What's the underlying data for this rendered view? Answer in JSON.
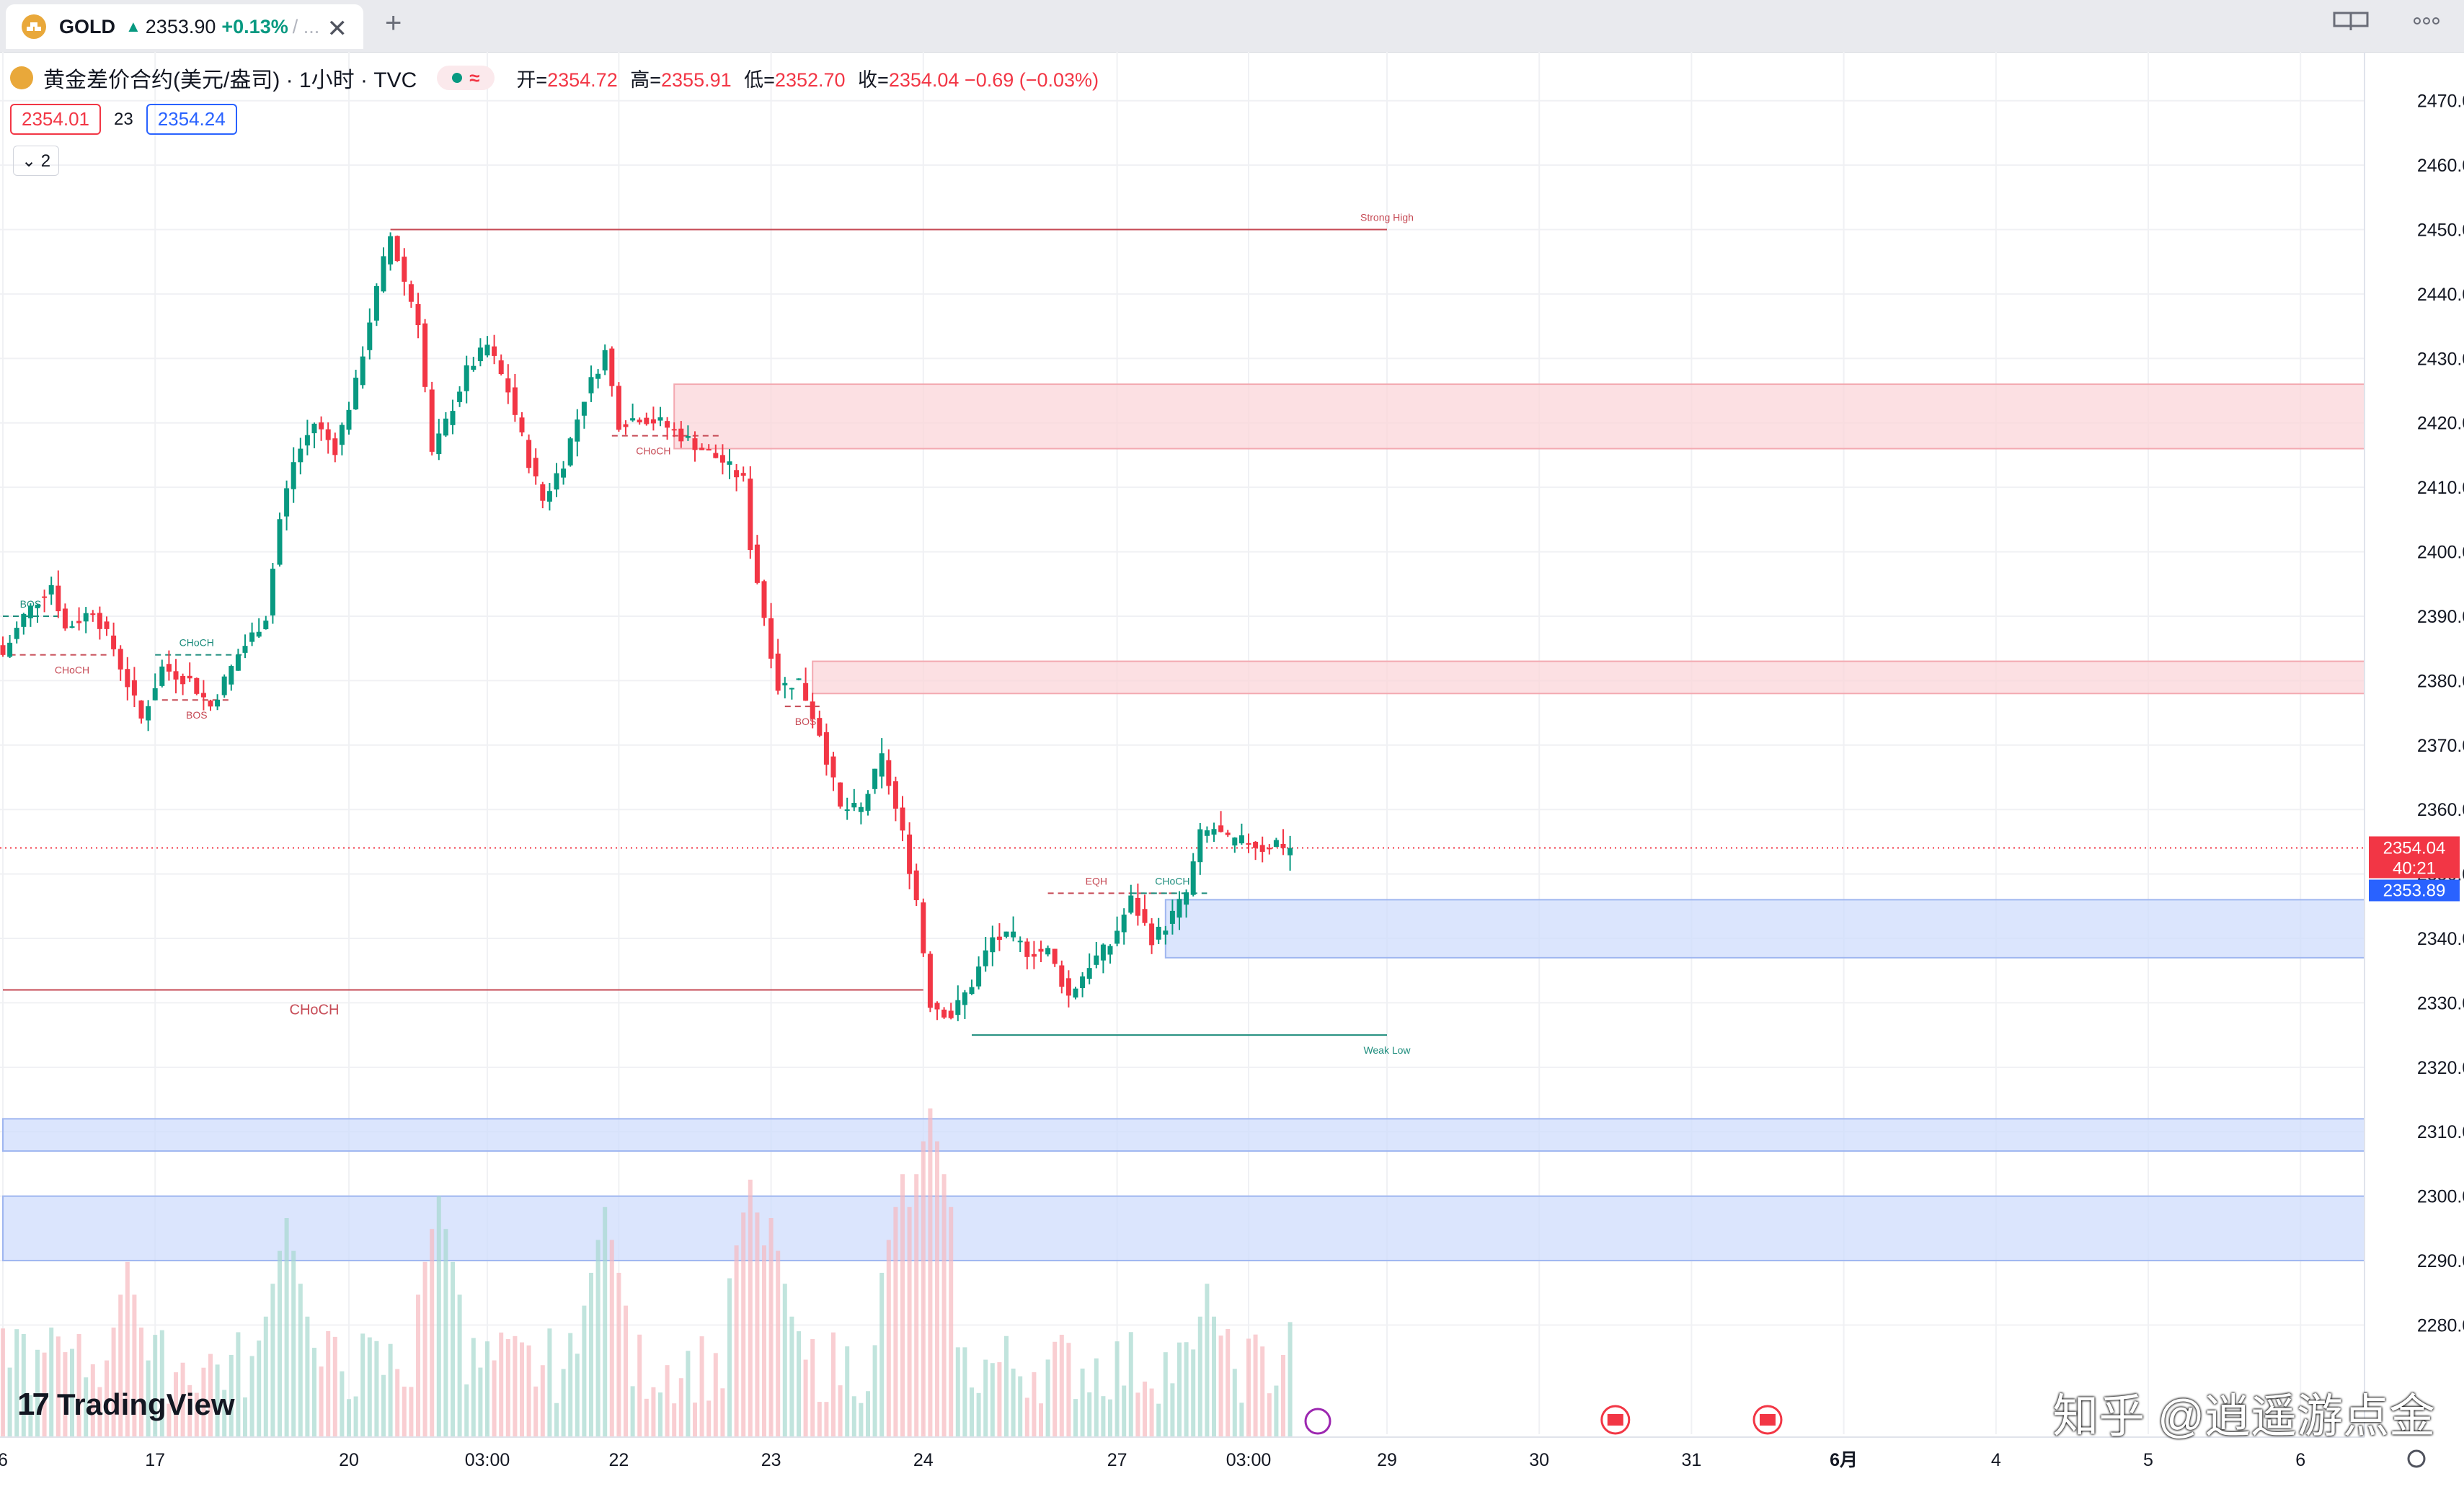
{
  "tab": {
    "symbol": "GOLD",
    "arrow": "▲",
    "price": "2353.90",
    "change": "+0.13%",
    "slash": "/ ..."
  },
  "legend": {
    "title": "黄金差价合约(美元/盎司) · 1小时 · TVC",
    "open_k": "开=",
    "open_v": "2354.72",
    "high_k": "高=",
    "high_v": "2355.91",
    "low_k": "低=",
    "low_v": "2352.70",
    "close_k": "收=",
    "close_v": "2354.04 −0.69 (−0.03%)"
  },
  "bid": "2354.01",
  "spread": "23",
  "ask": "2354.24",
  "collapse_label": "⌄ 2",
  "brand": {
    "logo": "17",
    "name": "TradingView"
  },
  "watermark": "知乎 @逍遥游点金",
  "price_label": {
    "value": "2354.04",
    "countdown": "40:21",
    "bid_line": "2353.89"
  },
  "colors": {
    "up": "#089981",
    "down": "#f23645",
    "supply": "#fbd5d9",
    "demand": "#cfdcfc"
  },
  "chart_data": {
    "type": "candlestick",
    "ylim": [
      2272,
      2475
    ],
    "y_ticks": [
      2470,
      2460,
      2450,
      2440,
      2430,
      2420,
      2410,
      2400,
      2390,
      2380,
      2370,
      2360,
      2350,
      2340,
      2330,
      2320,
      2310,
      2300,
      2290,
      2280
    ],
    "x_ticks": [
      {
        "i": 0,
        "label": "6"
      },
      {
        "i": 22,
        "label": "17"
      },
      {
        "i": 50,
        "label": "20"
      },
      {
        "i": 70,
        "label": "03:00"
      },
      {
        "i": 89,
        "label": "22"
      },
      {
        "i": 111,
        "label": "23"
      },
      {
        "i": 133,
        "label": "24"
      },
      {
        "i": 161,
        "label": "27"
      },
      {
        "i": 180,
        "label": "03:00"
      },
      {
        "i": 200,
        "label": "29"
      },
      {
        "i": 222,
        "label": "30"
      },
      {
        "i": 244,
        "label": "31"
      },
      {
        "i": 266,
        "label": "6月"
      },
      {
        "i": 288,
        "label": "4"
      },
      {
        "i": 310,
        "label": "5"
      },
      {
        "i": 332,
        "label": "6"
      }
    ],
    "anchors": [
      [
        0,
        2384
      ],
      [
        3,
        2390
      ],
      [
        7,
        2395
      ],
      [
        9,
        2388
      ],
      [
        13,
        2391
      ],
      [
        16,
        2385
      ],
      [
        20,
        2374
      ],
      [
        23,
        2382
      ],
      [
        27,
        2380
      ],
      [
        30,
        2376
      ],
      [
        34,
        2384
      ],
      [
        38,
        2390
      ],
      [
        40,
        2405
      ],
      [
        42,
        2414
      ],
      [
        45,
        2420
      ],
      [
        48,
        2416
      ],
      [
        51,
        2426
      ],
      [
        53,
        2436
      ],
      [
        55,
        2445
      ],
      [
        56,
        2449
      ],
      [
        58,
        2442
      ],
      [
        60,
        2436
      ],
      [
        62,
        2415
      ],
      [
        64,
        2420
      ],
      [
        67,
        2428
      ],
      [
        70,
        2432
      ],
      [
        73,
        2425
      ],
      [
        76,
        2414
      ],
      [
        78,
        2408
      ],
      [
        81,
        2414
      ],
      [
        84,
        2424
      ],
      [
        87,
        2431
      ],
      [
        89,
        2420
      ],
      [
        92,
        2421
      ],
      [
        95,
        2420
      ],
      [
        98,
        2418
      ],
      [
        101,
        2416
      ],
      [
        104,
        2414
      ],
      [
        107,
        2411
      ],
      [
        108,
        2401
      ],
      [
        110,
        2390
      ],
      [
        112,
        2379
      ],
      [
        115,
        2380
      ],
      [
        118,
        2372
      ],
      [
        121,
        2360
      ],
      [
        124,
        2360
      ],
      [
        127,
        2368
      ],
      [
        130,
        2356
      ],
      [
        132,
        2346
      ],
      [
        134,
        2330
      ],
      [
        137,
        2328
      ],
      [
        140,
        2333
      ],
      [
        143,
        2340
      ],
      [
        146,
        2340
      ],
      [
        148,
        2338
      ],
      [
        151,
        2338
      ],
      [
        154,
        2331
      ],
      [
        157,
        2336
      ],
      [
        160,
        2339
      ],
      [
        163,
        2346
      ],
      [
        166,
        2340
      ],
      [
        168,
        2342
      ],
      [
        171,
        2347
      ],
      [
        173,
        2356
      ],
      [
        175,
        2357
      ],
      [
        177,
        2355
      ],
      [
        180,
        2355
      ],
      [
        182,
        2354
      ],
      [
        184,
        2355
      ],
      [
        186,
        2354
      ]
    ],
    "volume_peaks": [
      {
        "i": 7,
        "v": 20
      },
      {
        "i": 18,
        "v": 32
      },
      {
        "i": 41,
        "v": 40
      },
      {
        "i": 63,
        "v": 44
      },
      {
        "i": 87,
        "v": 42
      },
      {
        "i": 108,
        "v": 47
      },
      {
        "i": 111,
        "v": 40
      },
      {
        "i": 130,
        "v": 48
      },
      {
        "i": 134,
        "v": 60
      },
      {
        "i": 174,
        "v": 28
      },
      {
        "i": 186,
        "v": 21
      }
    ],
    "zones": [
      {
        "kind": "supply",
        "from_i": 97,
        "y1": 2426,
        "y2": 2416
      },
      {
        "kind": "supply",
        "from_i": 117,
        "y1": 2383,
        "y2": 2378
      },
      {
        "kind": "demand",
        "from_i": 168,
        "y1": 2346,
        "y2": 2337
      },
      {
        "kind": "demand",
        "from_i": 0,
        "y1": 2312,
        "y2": 2307
      },
      {
        "kind": "demand",
        "from_i": 0,
        "y1": 2300,
        "y2": 2290
      }
    ],
    "structure_lines": [
      {
        "y": 2450,
        "i1": 56,
        "i2": 200,
        "color": "#c64a55",
        "dash": false,
        "label": "Strong High",
        "label_i": 200,
        "above": true
      },
      {
        "y": 2332,
        "i1": 0,
        "i2": 133,
        "color": "#c64a55",
        "dash": false,
        "label": "CHoCH",
        "label_i": 45,
        "above": false
      },
      {
        "y": 2325,
        "i1": 140,
        "i2": 200,
        "color": "#1c8c7c",
        "dash": false,
        "label": "Weak Low",
        "label_i": 200,
        "above": false
      },
      {
        "y": 2384,
        "i1": 1,
        "i2": 15,
        "color": "#c64a55",
        "dash": true,
        "label": "CHoCH",
        "label_i": 10,
        "above": false
      },
      {
        "y": 2390,
        "i1": 0,
        "i2": 8,
        "color": "#1c8c7c",
        "dash": true,
        "label": "BOS",
        "label_i": 4,
        "above": true
      },
      {
        "y": 2384,
        "i1": 22,
        "i2": 35,
        "color": "#1c8c7c",
        "dash": true,
        "label": "CHoCH",
        "label_i": 28,
        "above": true
      },
      {
        "y": 2377,
        "i1": 23,
        "i2": 33,
        "color": "#c64a55",
        "dash": true,
        "label": "BOS",
        "label_i": 28,
        "above": false
      },
      {
        "y": 2418,
        "i1": 88,
        "i2": 104,
        "color": "#c64a55",
        "dash": true,
        "label": "CHoCH",
        "label_i": 94,
        "above": false
      },
      {
        "y": 2376,
        "i1": 113,
        "i2": 118,
        "color": "#c64a55",
        "dash": true,
        "label": "BOS",
        "label_i": 116,
        "above": false
      },
      {
        "y": 2347,
        "i1": 151,
        "i2": 170,
        "color": "#c64a55",
        "dash": true,
        "label": "EQH",
        "label_i": 158,
        "above": true
      },
      {
        "y": 2347,
        "i1": 163,
        "i2": 174,
        "color": "#1c8c7c",
        "dash": true,
        "label": "CHoCH",
        "label_i": 169,
        "above": true
      }
    ],
    "last_price": 2354.04,
    "grid": true
  }
}
